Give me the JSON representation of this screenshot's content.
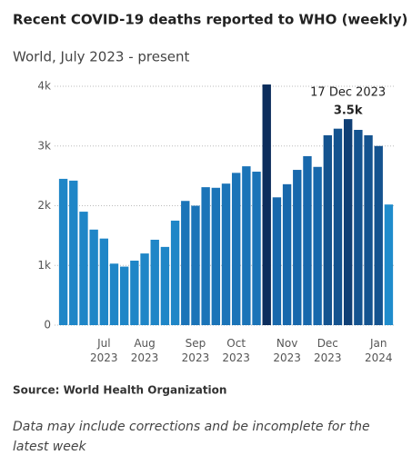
{
  "chart_data": {
    "type": "bar",
    "title": "Recent COVID-19 deaths reported to WHO (weekly)",
    "subtitle": "World, July 2023 - present",
    "source": "Source: World Health Organization",
    "note": "Data may include corrections and be incomplete for the latest week",
    "annotation": "17 Dec 2023",
    "categories": [
      null,
      null,
      null,
      null,
      "Jul 2023",
      null,
      null,
      null,
      "Aug 2023",
      null,
      null,
      null,
      null,
      "Sep 2023",
      null,
      null,
      null,
      "Oct 2023",
      null,
      null,
      null,
      null,
      "Nov 2023",
      null,
      null,
      null,
      "Dec 2023",
      null,
      null,
      null,
      null,
      "Jan 2024",
      null
    ],
    "values": [
      2450,
      2420,
      1900,
      1600,
      1450,
      1030,
      980,
      1080,
      1200,
      1430,
      1310,
      1750,
      2080,
      2000,
      2310,
      2300,
      2370,
      2550,
      2660,
      2570,
      4030,
      2140,
      2360,
      2600,
      2830,
      2650,
      3180,
      3290,
      3450,
      3270,
      3180,
      3000,
      2020
    ],
    "value_labels": [
      null,
      null,
      null,
      null,
      null,
      null,
      null,
      null,
      null,
      null,
      null,
      null,
      null,
      null,
      null,
      null,
      null,
      null,
      null,
      null,
      null,
      null,
      null,
      null,
      null,
      null,
      null,
      null,
      "3.5k",
      null,
      null,
      null,
      null
    ],
    "colors": [
      "#1f86c7",
      "#1f86c7",
      "#1f86c7",
      "#1f86c7",
      "#1f86c7",
      "#1f86c7",
      "#1f86c7",
      "#1f86c7",
      "#1f86c7",
      "#1f86c7",
      "#1f86c7",
      "#1f86c7",
      "#1b74b8",
      "#1b74b8",
      "#1b74b8",
      "#1b74b8",
      "#1b74b8",
      "#1b74b8",
      "#1b74b8",
      "#1b74b8",
      "#0c2d5c",
      "#1868ac",
      "#1868ac",
      "#1868ac",
      "#1868ac",
      "#1868ac",
      "#14538f",
      "#14538f",
      "#0f3f75",
      "#14538f",
      "#14538f",
      "#14538f",
      "#1f8ccc"
    ],
    "ylim": [
      0,
      4000
    ],
    "yticks": [
      0,
      {
        "value": 1000,
        "label": "1k"
      },
      {
        "value": 2000,
        "label": "2k"
      },
      {
        "value": 3000,
        "label": "3k"
      },
      {
        "value": 4000,
        "label": "4k"
      }
    ],
    "grid": true
  }
}
